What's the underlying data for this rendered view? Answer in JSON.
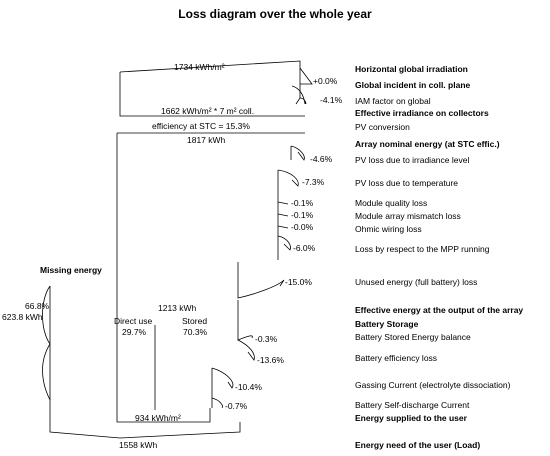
{
  "title": "Loss diagram over the whole year",
  "flows": {
    "top_value": "1734 kWh/m²",
    "collector_value": "1662 kWh/m² * 7 m² coll.",
    "efficiency": "efficiency at STC = 15.3%",
    "array_value": "1817 kWh",
    "effective_value": "1213 kWh",
    "direct_use_label": "Direct use",
    "direct_use_pct": "29.7%",
    "stored_label": "Stored",
    "stored_pct": "70.3%",
    "supplied_value": "934 kWh/m²",
    "need_value": "1558 kWh"
  },
  "missing": {
    "title": "Missing energy",
    "pct": "66.8%",
    "value": "623.8 kWh"
  },
  "steps": [
    {
      "label": "Horizontal global irradiation",
      "bold": true,
      "pct": ""
    },
    {
      "label": "Global incident in coll. plane",
      "bold": true,
      "pct": "+0.0%"
    },
    {
      "label": "IAM factor on global",
      "bold": false,
      "pct": "-4.1%"
    },
    {
      "label": "Effective irradiance on collectors",
      "bold": true,
      "pct": ""
    },
    {
      "label": "PV conversion",
      "bold": false,
      "pct": ""
    },
    {
      "label": "Array nominal energy (at STC effic.)",
      "bold": true,
      "pct": ""
    },
    {
      "label": "PV loss due to irradiance level",
      "bold": false,
      "pct": "-4.6%"
    },
    {
      "label": "PV loss due to temperature",
      "bold": false,
      "pct": "-7.3%"
    },
    {
      "label": "Module quality loss",
      "bold": false,
      "pct": "-0.1%"
    },
    {
      "label": "Module array mismatch loss",
      "bold": false,
      "pct": "-0.1%"
    },
    {
      "label": "Ohmic wiring loss",
      "bold": false,
      "pct": "-0.0%"
    },
    {
      "label": "Loss by respect to the MPP running",
      "bold": false,
      "pct": "-6.0%"
    },
    {
      "label": "Unused energy (full battery) loss",
      "bold": false,
      "pct": "-15.0%"
    },
    {
      "label": "Effective energy at the output of the array",
      "bold": true,
      "pct": ""
    },
    {
      "label": "Battery Storage",
      "bold": true,
      "pct": ""
    },
    {
      "label": "Battery Stored Energy balance",
      "bold": false,
      "pct": "-0.3%"
    },
    {
      "label": "Battery efficiency loss",
      "bold": false,
      "pct": "-13.6%"
    },
    {
      "label": "Gassing Current (electrolyte dissociation)",
      "bold": false,
      "pct": "-10.4%"
    },
    {
      "label": "Battery Self-discharge Current",
      "bold": false,
      "pct": "-0.7%"
    },
    {
      "label": "Energy supplied to the user",
      "bold": true,
      "pct": ""
    },
    {
      "label": "Energy need of the user (Load)",
      "bold": true,
      "pct": ""
    }
  ]
}
